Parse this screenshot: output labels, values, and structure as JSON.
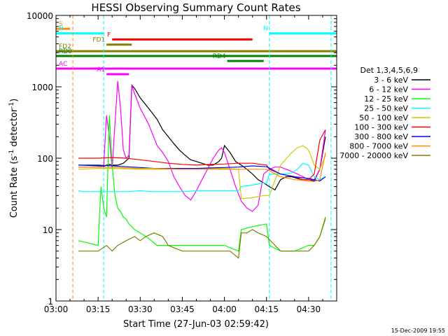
{
  "chart_data": {
    "type": "line",
    "title": "HESSI Observing Summary Count Rates",
    "xlabel": "Start Time (27-Jun-03 02:59:42)",
    "ylabel_main": "Count Rate (s",
    "ylabel_sup1": "-1",
    "ylabel_mid": " detector",
    "ylabel_sup2": "-1",
    "ylabel_end": ")",
    "y_scale": "log",
    "ylim": [
      1,
      10000
    ],
    "xlim_minutes": [
      0,
      100
    ],
    "x_ticks": [
      {
        "m": 0,
        "label": "03:00"
      },
      {
        "m": 15,
        "label": "03:15"
      },
      {
        "m": 30,
        "label": "03:30"
      },
      {
        "m": 45,
        "label": "03:45"
      },
      {
        "m": 60,
        "label": "04:00"
      },
      {
        "m": 75,
        "label": "04:15"
      },
      {
        "m": 90,
        "label": "04:30"
      }
    ],
    "y_ticks": [
      {
        "v": 1,
        "label": "1"
      },
      {
        "v": 10,
        "label": "10"
      },
      {
        "v": 100,
        "label": "100"
      },
      {
        "v": 1000,
        "label": "1000"
      },
      {
        "v": 10000,
        "label": "10000"
      }
    ],
    "legend_title": "Det 1,3,4,5,6,9",
    "series": [
      {
        "name": "3 - 6 keV",
        "color": "#000000",
        "x": [
          8,
          16,
          17,
          18,
          19,
          20,
          22,
          24,
          26,
          27,
          28,
          30,
          33,
          36,
          38,
          40,
          42,
          44,
          46,
          48,
          50,
          52,
          54,
          56,
          58,
          59,
          60,
          62,
          64,
          66,
          68,
          70,
          72,
          74,
          76,
          78,
          80,
          82,
          84,
          86,
          88,
          90,
          92,
          94,
          96
        ],
        "y": [
          80,
          78,
          77,
          80,
          82,
          80,
          80,
          85,
          100,
          1050,
          950,
          700,
          500,
          350,
          250,
          200,
          160,
          130,
          110,
          95,
          90,
          85,
          80,
          80,
          90,
          100,
          150,
          120,
          90,
          80,
          70,
          60,
          50,
          45,
          40,
          36,
          50,
          55,
          55,
          52,
          50,
          50,
          48,
          70,
          200
        ]
      },
      {
        "name": "6 - 12 keV",
        "color": "#ff00ff",
        "x": [
          8,
          16,
          17,
          18,
          19,
          20,
          21,
          22,
          23,
          24,
          25,
          26,
          27,
          28,
          30,
          33,
          36,
          38,
          40,
          42,
          44,
          46,
          48,
          50,
          52,
          54,
          56,
          58,
          59,
          60,
          62,
          64,
          66,
          68,
          70,
          72,
          74,
          76,
          78,
          80,
          82,
          84,
          86,
          88,
          90,
          92,
          94,
          96
        ],
        "y": [
          75,
          75,
          80,
          400,
          200,
          70,
          300,
          1200,
          500,
          130,
          100,
          110,
          1050,
          800,
          500,
          300,
          150,
          120,
          90,
          55,
          40,
          30,
          26,
          35,
          50,
          70,
          100,
          130,
          140,
          120,
          70,
          40,
          25,
          20,
          18,
          22,
          60,
          70,
          75,
          75,
          70,
          65,
          60,
          55,
          50,
          50,
          70,
          250
        ]
      },
      {
        "name": "12 - 25 keV",
        "color": "#00ff00",
        "x": [
          8,
          15,
          16,
          17,
          18,
          19,
          20,
          21,
          22,
          23,
          24,
          25,
          26,
          28,
          30,
          32,
          34,
          36,
          38,
          40,
          45,
          50,
          55,
          60,
          65,
          66,
          70,
          75,
          76,
          80,
          85,
          90,
          92,
          94,
          96
        ],
        "y": [
          7,
          6,
          40,
          20,
          15,
          400,
          80,
          30,
          20,
          18,
          15,
          14,
          12,
          10,
          9,
          8,
          7,
          6,
          6,
          6,
          6,
          6,
          6,
          6,
          5,
          10,
          11,
          12,
          6,
          5,
          5,
          6,
          6,
          8,
          14
        ]
      },
      {
        "name": "25 - 50 keV",
        "color": "#00ffff",
        "x": [
          8,
          10,
          15,
          20,
          25,
          30,
          35,
          40,
          45,
          50,
          55,
          60,
          65,
          66,
          70,
          74,
          75,
          76,
          80,
          84,
          86,
          88,
          90,
          92,
          94,
          96
        ],
        "y": [
          35,
          34,
          34,
          34,
          34,
          35,
          34,
          34,
          34,
          35,
          35,
          35,
          35,
          40,
          42,
          45,
          44,
          60,
          60,
          62,
          70,
          85,
          80,
          55,
          50,
          55
        ]
      },
      {
        "name": "50 - 100 keV",
        "color": "#cccc00",
        "x": [
          8,
          15,
          20,
          25,
          30,
          35,
          40,
          45,
          50,
          55,
          60,
          65,
          66,
          70,
          74,
          76,
          80,
          84,
          86,
          88,
          90,
          92,
          94,
          96
        ],
        "y": [
          70,
          72,
          72,
          71,
          70,
          70,
          70,
          70,
          70,
          72,
          72,
          70,
          27,
          28,
          30,
          30,
          80,
          120,
          140,
          150,
          130,
          80,
          70,
          110
        ]
      },
      {
        "name": "100 - 300 keV",
        "color": "#ff0000",
        "x": [
          8,
          15,
          20,
          25,
          30,
          35,
          40,
          45,
          50,
          55,
          60,
          65,
          70,
          75,
          76,
          80,
          85,
          88,
          90,
          92,
          94,
          96
        ],
        "y": [
          100,
          100,
          102,
          100,
          95,
          90,
          85,
          82,
          80,
          82,
          83,
          85,
          85,
          80,
          70,
          60,
          55,
          50,
          50,
          60,
          180,
          250
        ]
      },
      {
        "name": "300 - 800 keV",
        "color": "#0000ff",
        "x": [
          8,
          15,
          20,
          25,
          30,
          35,
          40,
          45,
          50,
          55,
          60,
          65,
          70,
          75,
          80,
          85,
          90,
          92,
          94,
          96
        ],
        "y": [
          80,
          80,
          78,
          76,
          74,
          72,
          72,
          72,
          72,
          73,
          74,
          75,
          78,
          76,
          60,
          55,
          52,
          50,
          48,
          55
        ]
      },
      {
        "name": "800 - 7000 keV",
        "color": "#ff8c00",
        "x": [
          8,
          15,
          20,
          25,
          30,
          35,
          40,
          45,
          50,
          55,
          60,
          65,
          70,
          75,
          80,
          85,
          90,
          92,
          94,
          96
        ],
        "y": [
          75,
          75,
          74,
          73,
          72,
          72,
          71,
          70,
          70,
          70,
          70,
          70,
          70,
          70,
          55,
          50,
          48,
          47,
          50,
          120
        ]
      },
      {
        "name": "7000 - 20000 keV",
        "color": "#808000",
        "x": [
          8,
          12,
          15,
          18,
          20,
          22,
          25,
          28,
          30,
          32,
          35,
          38,
          40,
          45,
          50,
          55,
          58,
          60,
          62,
          65,
          66,
          68,
          70,
          72,
          75,
          78,
          80,
          85,
          90,
          92,
          94,
          96
        ],
        "y": [
          5,
          5,
          5,
          6,
          5,
          6,
          7,
          8,
          7,
          8,
          9,
          8,
          6,
          5,
          5,
          5,
          5,
          5,
          5,
          4,
          9,
          9,
          10,
          9,
          8,
          6,
          5,
          5,
          5,
          6,
          8,
          15
        ]
      }
    ],
    "attenuator_bars": [
      {
        "label": "S",
        "color": "#ff8c00",
        "m0": 0,
        "m1": 5,
        "y": 6500
      },
      {
        "label": "N",
        "color": "#00ffff",
        "m0": 0,
        "m1": 17,
        "y": 5600
      },
      {
        "label": "N",
        "color": "#00ffff",
        "m0": 76,
        "m1": 100,
        "y": 5600
      },
      {
        "label": "F",
        "color": "#ff0000",
        "m0": 20,
        "m1": 70,
        "y": 4600
      },
      {
        "label": "FD1",
        "color": "#808000",
        "m0": 18,
        "m1": 27,
        "y": 3900
      },
      {
        "label": "FD2",
        "color": "#808000",
        "m0": 0,
        "m1": 100,
        "y": 3150
      },
      {
        "label": "RD0",
        "color": "#008000",
        "m0": 0,
        "m1": 100,
        "y": 2700
      },
      {
        "label": "RD4",
        "color": "#008000",
        "m0": 61,
        "m1": 74,
        "y": 2300
      },
      {
        "label": "AC",
        "color": "#ff00ff",
        "m0": 0,
        "m1": 100,
        "y": 1800
      },
      {
        "label": "A1",
        "color": "#ff00ff",
        "m0": 18,
        "m1": 26,
        "y": 1500
      }
    ],
    "vlines": [
      {
        "m": 6,
        "color": "#ff8c00"
      },
      {
        "m": 17,
        "color": "#00ffff"
      },
      {
        "m": 76,
        "color": "#00ffff"
      },
      {
        "m": 98,
        "color": "#00ffff"
      }
    ],
    "timestamp": "15-Dec-2009 19:55"
  }
}
